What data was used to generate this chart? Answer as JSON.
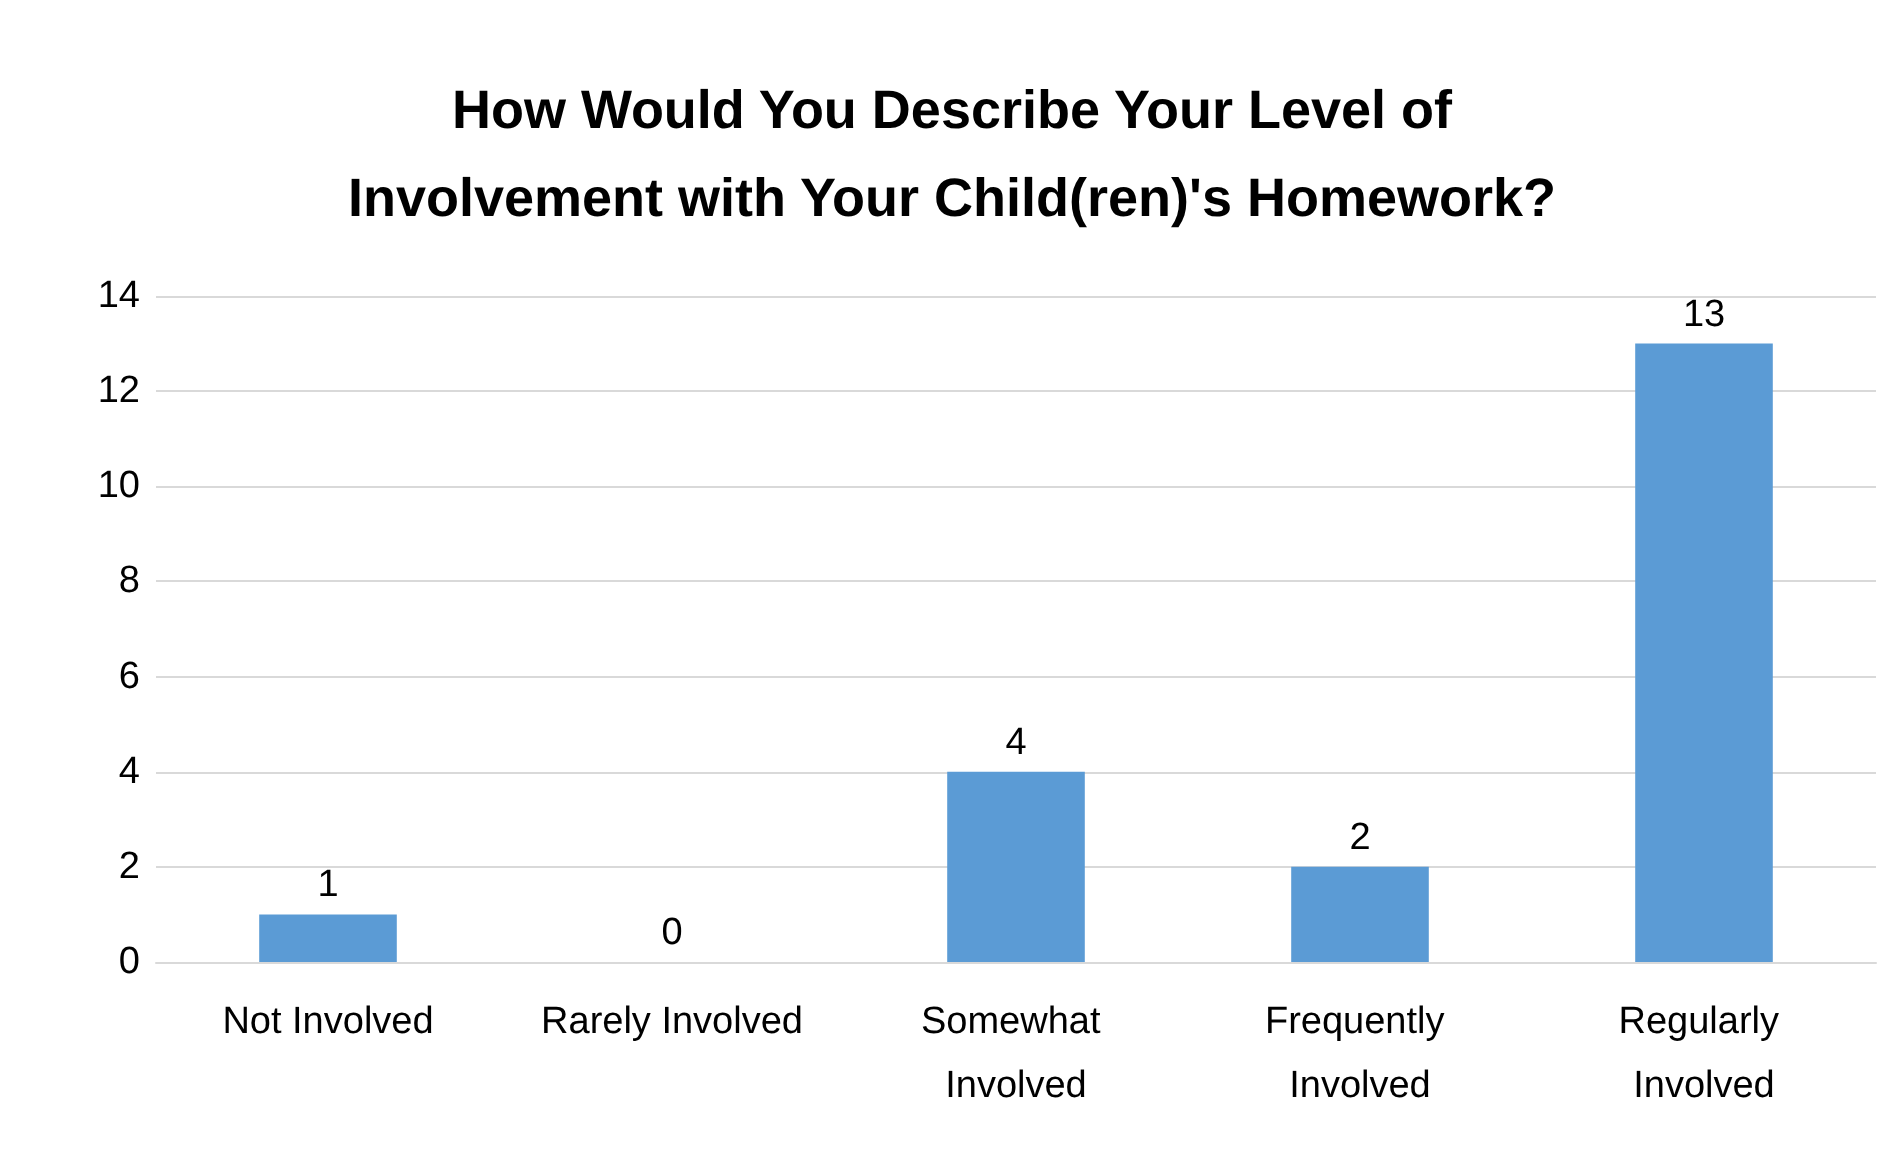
{
  "chart_data": {
    "type": "bar",
    "title": "How Would You Describe Your Level of\nInvolvement with Your Child(ren)'s Homework?",
    "categories": [
      "Not Involved",
      "Rarely Involved",
      "Somewhat Involved",
      "Frequently Involved",
      "Regularly Involved"
    ],
    "values": [
      1,
      0,
      4,
      2,
      13
    ],
    "color": "#5b9bd5",
    "ylim": [
      0,
      14
    ],
    "yticks": [
      0,
      2,
      4,
      6,
      8,
      10,
      12,
      14
    ],
    "grid": "y",
    "data_labels": true
  }
}
